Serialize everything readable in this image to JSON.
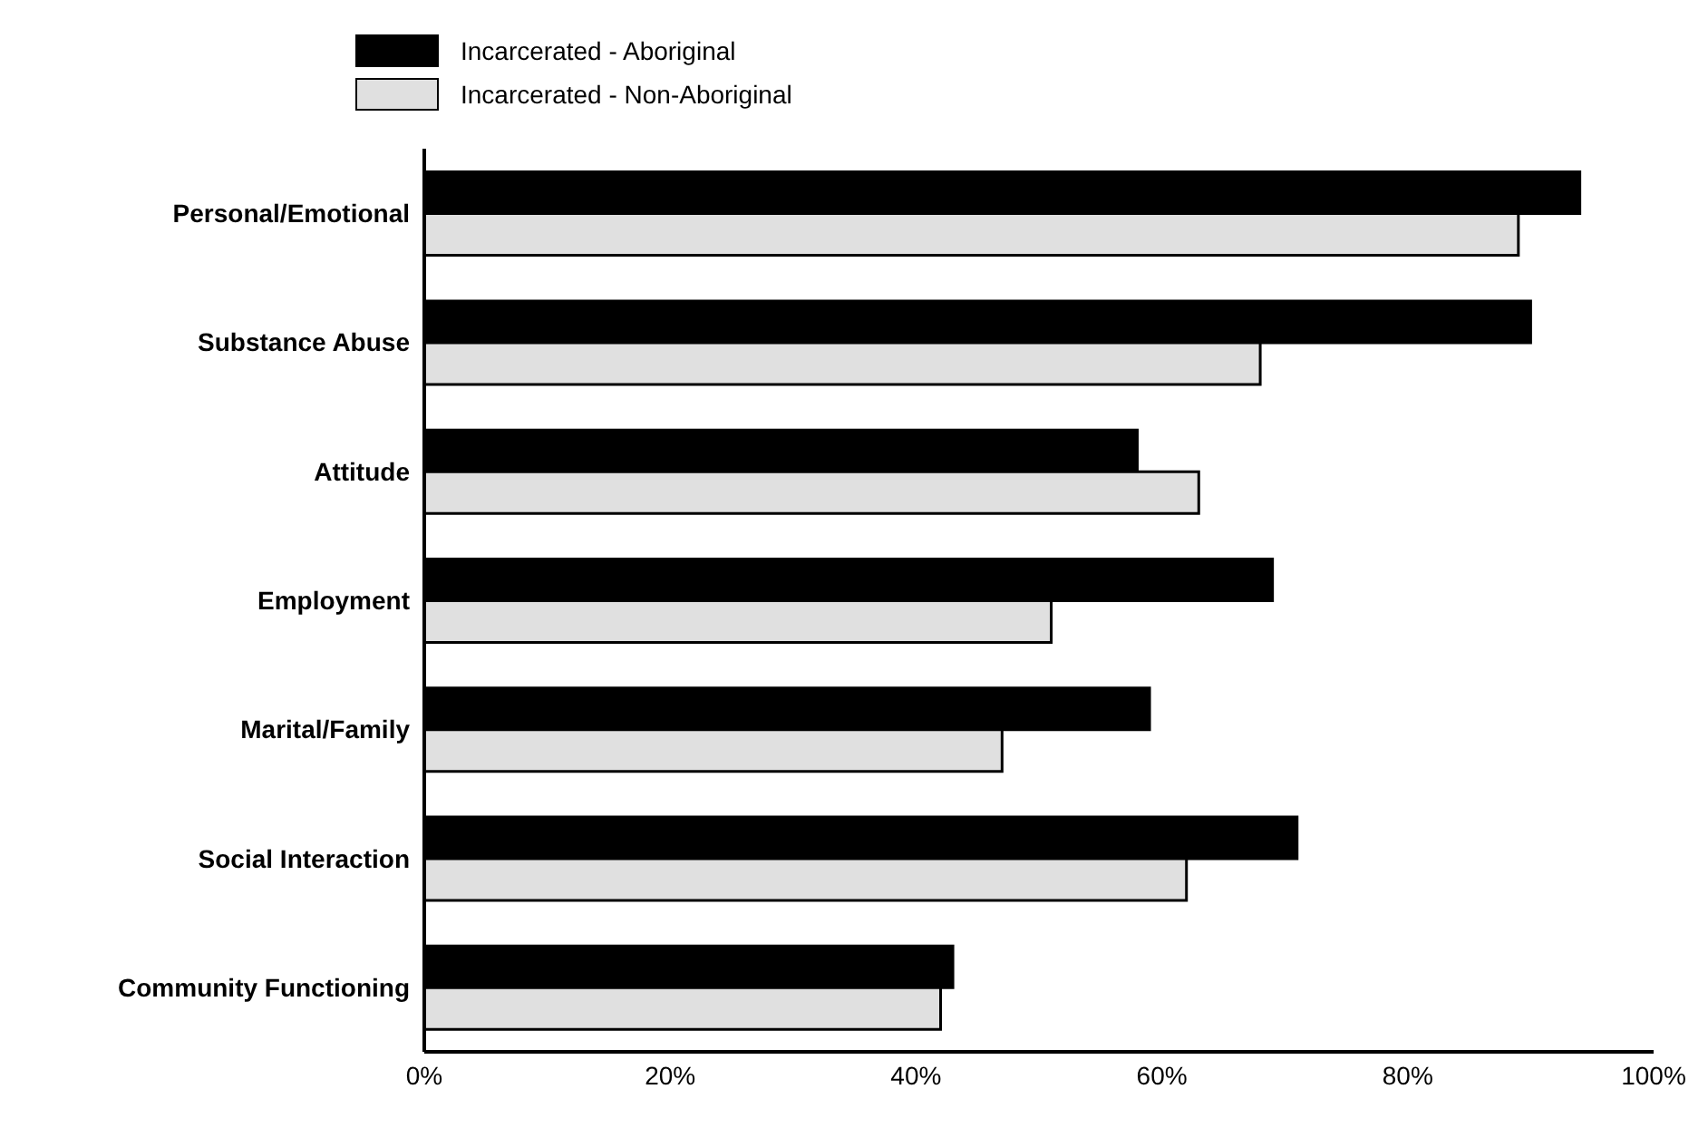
{
  "chart_data": {
    "type": "bar",
    "orientation": "horizontal",
    "categories": [
      "Personal/Emotional",
      "Substance Abuse",
      "Attitude",
      "Employment",
      "Marital/Family",
      "Social Interaction",
      "Community Functioning"
    ],
    "series": [
      {
        "name": "Incarcerated - Aboriginal",
        "color": "#000000",
        "values": [
          94,
          90,
          58,
          69,
          59,
          71,
          43
        ]
      },
      {
        "name": "Incarcerated - Non-Aboriginal",
        "color": "#e0e0e0",
        "values": [
          89,
          68,
          63,
          51,
          47,
          62,
          42
        ]
      }
    ],
    "xlim": [
      0,
      100
    ],
    "xticks": [
      {
        "value": 0,
        "label": "0%"
      },
      {
        "value": 20,
        "label": "20%"
      },
      {
        "value": 40,
        "label": "40%"
      },
      {
        "value": 60,
        "label": "60%"
      },
      {
        "value": 80,
        "label": "80%"
      },
      {
        "value": 100,
        "label": "100%"
      }
    ],
    "grid": false,
    "legend": "top"
  }
}
